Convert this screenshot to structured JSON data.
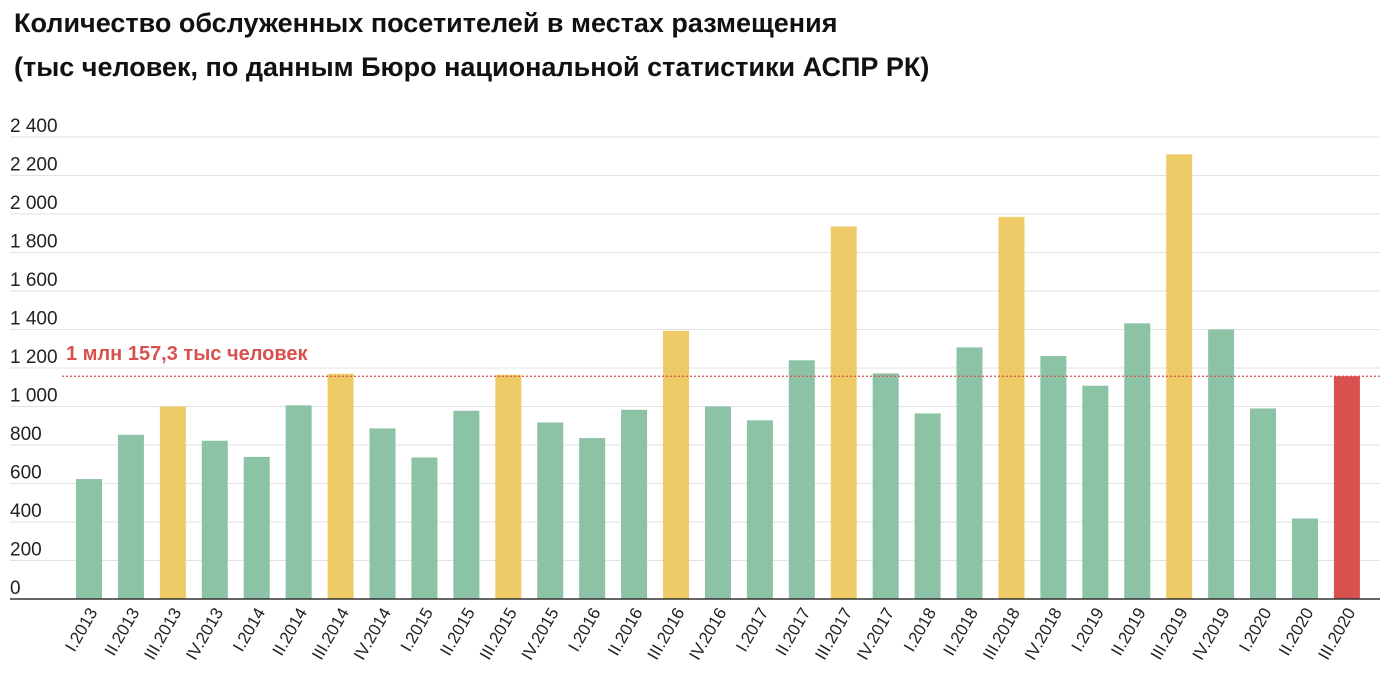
{
  "title": "Количество обслуженных посетителей в местах размещения",
  "subtitle": "(тыс человек, по данным Бюро национальной статистики АСПР РК)",
  "chart_data": {
    "type": "bar",
    "categories": [
      "I.2013",
      "II.2013",
      "III.2013",
      "IV.2013",
      "I.2014",
      "II.2014",
      "III.2014",
      "IV.2014",
      "I.2015",
      "II.2015",
      "III.2015",
      "IV.2015",
      "I.2016",
      "II.2016",
      "III.2016",
      "IV.2016",
      "I.2017",
      "II.2017",
      "III.2017",
      "IV.2017",
      "I.2018",
      "II.2018",
      "III.2018",
      "IV.2018",
      "I.2019",
      "II.2019",
      "III.2019",
      "IV.2019",
      "I.2020",
      "II.2020",
      "III.2020"
    ],
    "values": [
      623,
      853,
      1000,
      822,
      738,
      1006,
      1170,
      886,
      735,
      978,
      1165,
      917,
      836,
      983,
      1393,
      1000,
      928,
      1240,
      1935,
      1172,
      964,
      1307,
      1985,
      1262,
      1108,
      1432,
      2310,
      1400,
      990,
      418,
      1157.3
    ],
    "bar_kinds": [
      "q",
      "q",
      "q3",
      "q",
      "q",
      "q",
      "q3",
      "q",
      "q",
      "q",
      "q3",
      "q",
      "q",
      "q",
      "q3",
      "q",
      "q",
      "q",
      "q3",
      "q",
      "q",
      "q",
      "q3",
      "q",
      "q",
      "q",
      "q3",
      "q",
      "q",
      "q",
      "current"
    ],
    "colors": {
      "q": "#8cc2a5",
      "q3": "#efcb68",
      "current": "#d9514f",
      "reference": "#d9514f",
      "grid": "#e2e2e2"
    },
    "yticks": [
      0,
      200,
      400,
      600,
      800,
      1000,
      1200,
      1400,
      1600,
      1800,
      2000,
      2200,
      2400
    ],
    "ytick_labels": [
      "0",
      "200",
      "400",
      "600",
      "800",
      "1 000",
      "1 200",
      "1 400",
      "1 600",
      "1 800",
      "2 000",
      "2 200",
      "2 400"
    ],
    "ylim": [
      0,
      2400
    ],
    "reference_value": 1157.3,
    "reference_label": "1 млн 157,3 тыс человек",
    "grid": true
  }
}
